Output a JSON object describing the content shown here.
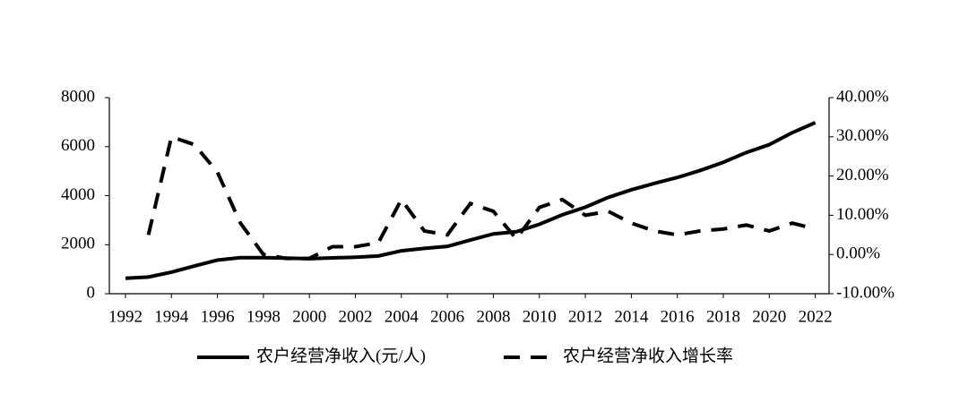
{
  "chart_data": {
    "type": "line",
    "x": [
      1992,
      1993,
      1994,
      1995,
      1996,
      1997,
      1998,
      1999,
      2000,
      2001,
      2002,
      2003,
      2004,
      2005,
      2006,
      2007,
      2008,
      2009,
      2010,
      2011,
      2012,
      2013,
      2014,
      2015,
      2016,
      2017,
      2018,
      2019,
      2020,
      2021,
      2022
    ],
    "series": [
      {
        "name": "农户经营净收入(元/人)",
        "color": "#000000",
        "dash": false,
        "values": [
          630,
          680,
          880,
          1130,
          1370,
          1470,
          1470,
          1450,
          1430,
          1460,
          1490,
          1540,
          1750,
          1850,
          1930,
          2190,
          2440,
          2530,
          2830,
          3220,
          3530,
          3930,
          4240,
          4500,
          4740,
          5030,
          5360,
          5760,
          6080,
          6570,
          6980
        ]
      },
      {
        "name": "农户经营净收入增长率",
        "color": "#000000",
        "dash": true,
        "axis": "y2",
        "values": [
          null,
          5,
          30,
          28,
          21,
          8,
          0,
          -1,
          -1,
          2,
          2,
          3,
          14,
          6,
          5,
          13,
          11,
          4,
          12,
          14,
          10,
          11,
          8,
          6,
          5,
          6,
          6.5,
          7.5,
          6,
          8,
          6.5
        ]
      }
    ],
    "xlim": [
      1991.3,
      2022.6
    ],
    "xticks": [
      1992,
      1994,
      1996,
      1998,
      2000,
      2002,
      2004,
      2006,
      2008,
      2010,
      2012,
      2014,
      2016,
      2018,
      2020,
      2022
    ],
    "ylim": [
      0,
      8000
    ],
    "yticks": [
      0,
      2000,
      4000,
      6000,
      8000
    ],
    "y2lim": [
      -10,
      40
    ],
    "y2ticks": [
      {
        "value": -10,
        "label": "-10.00%"
      },
      {
        "value": 0,
        "label": "0.00%"
      },
      {
        "value": 10,
        "label": "10.00%"
      },
      {
        "value": 20,
        "label": "20.00%"
      },
      {
        "value": 30,
        "label": "30.00%"
      },
      {
        "value": 40,
        "label": "40.00%"
      }
    ],
    "legend": "bottom"
  }
}
